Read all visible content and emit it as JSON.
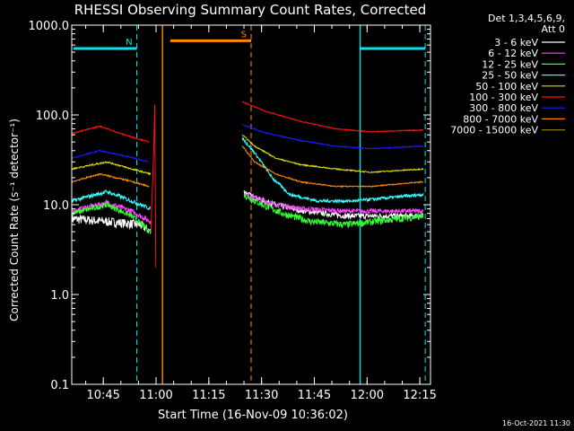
{
  "chart_data": {
    "type": "line",
    "title": "RHESSI Observing Summary Count Rates, Corrected",
    "xlabel": "Start Time (16-Nov-09 10:36:02)",
    "ylabel": "Corrected Count Rate (s⁻¹ detector⁻¹)",
    "yscale": "log",
    "ylim": [
      0.1,
      1000
    ],
    "y_ticks": [
      {
        "value": 0.1,
        "label": "0.1"
      },
      {
        "value": 1,
        "label": "1.0"
      },
      {
        "value": 10,
        "label": "10.0"
      },
      {
        "value": 100,
        "label": "100.0"
      },
      {
        "value": 1000,
        "label": "1000.0"
      }
    ],
    "x_unit": "minutes after 10:36:02",
    "xlim": [
      0,
      102
    ],
    "x_ticks": [
      {
        "value": 8.97,
        "label": "10:45"
      },
      {
        "value": 23.97,
        "label": "11:00"
      },
      {
        "value": 38.97,
        "label": "11:15"
      },
      {
        "value": 53.97,
        "label": "11:30"
      },
      {
        "value": 68.97,
        "label": "11:45"
      },
      {
        "value": 83.97,
        "label": "12:00"
      },
      {
        "value": 98.97,
        "label": "12:15"
      }
    ],
    "legend": {
      "title_lines": [
        "Det 1,3,4,5,6,9,",
        "Att 0"
      ],
      "position": "right"
    },
    "series": [
      {
        "name": "3 - 6 keV",
        "color": "#ffffff",
        "pre": {
          "t": [
            0,
            10,
            19.5,
            22.5
          ],
          "y": [
            7,
            6.5,
            6,
            5
          ],
          "noise": 0.12
        },
        "post": {
          "t": [
            49,
            52,
            58,
            66,
            78,
            100
          ],
          "y": [
            14,
            12,
            10,
            8.5,
            7.5,
            7.5
          ],
          "noise": 0.07
        }
      },
      {
        "name": "6 - 12 keV",
        "color": "#ff44ff",
        "pre": {
          "t": [
            0,
            10,
            17,
            22.5
          ],
          "y": [
            8.5,
            10.5,
            8.5,
            6.5
          ],
          "noise": 0.07
        },
        "post": {
          "t": [
            49,
            52,
            58,
            66,
            78,
            100
          ],
          "y": [
            13,
            12,
            10,
            9,
            8.5,
            8.5
          ],
          "noise": 0.06
        }
      },
      {
        "name": "12 - 25 keV",
        "color": "#33ff33",
        "pre": {
          "t": [
            0,
            10,
            17,
            22.5
          ],
          "y": [
            8,
            10,
            7.5,
            5
          ],
          "noise": 0.07
        },
        "post": {
          "t": [
            49,
            52,
            60,
            68,
            78,
            100
          ],
          "y": [
            13,
            11,
            8,
            6.5,
            6,
            7.5
          ],
          "noise": 0.09
        }
      },
      {
        "name": "25 - 50 keV",
        "color": "#33ffff",
        "pre": {
          "t": [
            0,
            10,
            17,
            22.5
          ],
          "y": [
            11,
            14,
            11,
            9
          ],
          "noise": 0.05
        },
        "post": {
          "t": [
            48.5,
            52,
            57,
            62,
            70,
            80,
            100
          ],
          "y": [
            55,
            38,
            20,
            13,
            11,
            11,
            13
          ],
          "noise": 0.04
        }
      },
      {
        "name": "50 - 100 keV",
        "color": "#dddd00",
        "pre": {
          "t": [
            0,
            10,
            17,
            22.5
          ],
          "y": [
            25,
            30,
            25,
            22
          ],
          "noise": 0.02
        },
        "post": {
          "t": [
            48.5,
            52,
            58,
            65,
            75,
            85,
            100
          ],
          "y": [
            60,
            45,
            33,
            28,
            25,
            23,
            25
          ],
          "noise": 0.015
        }
      },
      {
        "name": "100 - 300 keV",
        "color": "#ff1111",
        "pre": {
          "t": [
            0,
            8,
            15,
            22
          ],
          "y": [
            62,
            75,
            60,
            50
          ],
          "noise": 0.015
        },
        "post": {
          "t": [
            48.5,
            55,
            65,
            75,
            85,
            100
          ],
          "y": [
            140,
            110,
            85,
            70,
            65,
            68
          ],
          "noise": 0.012
        }
      },
      {
        "name": "300 - 800 keV",
        "color": "#1a1aff",
        "pre": {
          "t": [
            0,
            8,
            15,
            22
          ],
          "y": [
            33,
            40,
            35,
            30
          ],
          "noise": 0.015
        },
        "post": {
          "t": [
            48.5,
            55,
            65,
            75,
            85,
            100
          ],
          "y": [
            78,
            63,
            52,
            45,
            42,
            45
          ],
          "noise": 0.012
        }
      },
      {
        "name": "800 - 7000 keV",
        "color": "#ff8800",
        "pre": {
          "t": [
            0,
            8,
            15,
            22
          ],
          "y": [
            18,
            22,
            19,
            16
          ],
          "noise": 0.02
        },
        "post": {
          "t": [
            48.5,
            52,
            58,
            65,
            75,
            85,
            100
          ],
          "y": [
            45,
            30,
            22,
            18,
            16,
            16,
            18
          ],
          "noise": 0.015
        }
      },
      {
        "name": "7000 - 15000 keV",
        "color": "#887700",
        "pre": {
          "t": [],
          "y": [],
          "noise": 0
        },
        "post": {
          "t": [],
          "y": [],
          "noise": 0
        }
      }
    ],
    "flags": [
      {
        "label": "N",
        "color": "#00e5ee",
        "segments": [
          [
            0.5,
            18.5
          ],
          [
            82,
            100.5
          ]
        ],
        "y": 550
      },
      {
        "label": "S",
        "color": "#ff8800",
        "segments": [
          [
            28,
            51
          ]
        ],
        "y": 670
      }
    ],
    "solid_markers": [
      {
        "t": 25.8,
        "color": "#ff8800"
      },
      {
        "t": 82,
        "color": "#00e5ee"
      }
    ],
    "dashed_markers": [
      {
        "t": 0,
        "color": "#00e5ee"
      },
      {
        "t": 18.5,
        "color": "#00e5ee"
      },
      {
        "t": 51,
        "color": "#ff8800"
      },
      {
        "t": 100.5,
        "color": "#00e5ee"
      }
    ]
  },
  "footer_timestamp": "16-Oct-2021 11:30"
}
